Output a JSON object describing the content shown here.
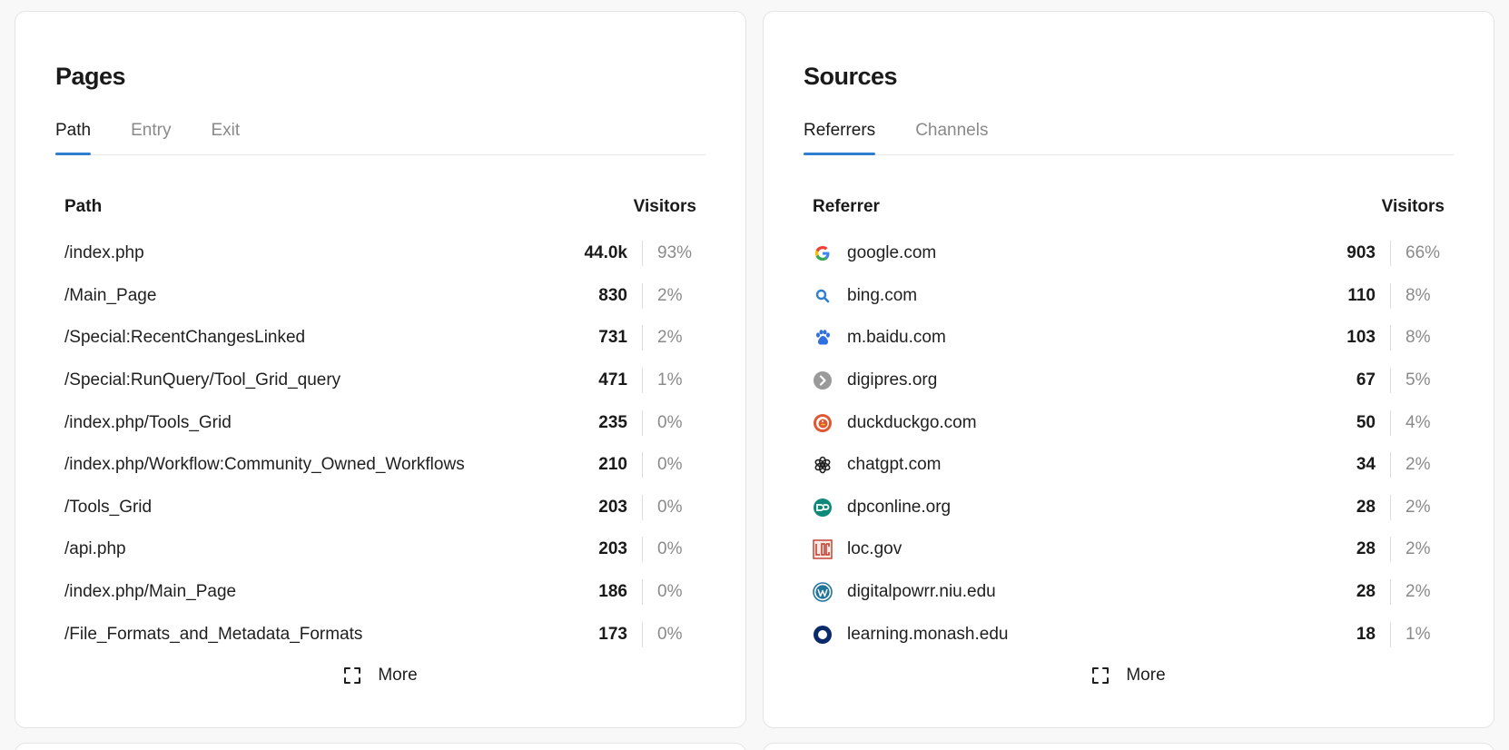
{
  "pages": {
    "title": "Pages",
    "tabs": [
      {
        "label": "Path",
        "active": true
      },
      {
        "label": "Entry",
        "active": false
      },
      {
        "label": "Exit",
        "active": false
      }
    ],
    "columns": {
      "label": "Path",
      "visitors": "Visitors"
    },
    "rows": [
      {
        "label": "/index.php",
        "count": "44.0k",
        "pct": "93%"
      },
      {
        "label": "/Main_Page",
        "count": "830",
        "pct": "2%"
      },
      {
        "label": "/Special:RecentChangesLinked",
        "count": "731",
        "pct": "2%"
      },
      {
        "label": "/Special:RunQuery/Tool_Grid_query",
        "count": "471",
        "pct": "1%"
      },
      {
        "label": "/index.php/Tools_Grid",
        "count": "235",
        "pct": "0%"
      },
      {
        "label": "/index.php/Workflow:Community_Owned_Workflows",
        "count": "210",
        "pct": "0%"
      },
      {
        "label": "/Tools_Grid",
        "count": "203",
        "pct": "0%"
      },
      {
        "label": "/api.php",
        "count": "203",
        "pct": "0%"
      },
      {
        "label": "/index.php/Main_Page",
        "count": "186",
        "pct": "0%"
      },
      {
        "label": "/File_Formats_and_Metadata_Formats",
        "count": "173",
        "pct": "0%"
      }
    ],
    "more_label": "More"
  },
  "sources": {
    "title": "Sources",
    "tabs": [
      {
        "label": "Referrers",
        "active": true
      },
      {
        "label": "Channels",
        "active": false
      }
    ],
    "columns": {
      "label": "Referrer",
      "visitors": "Visitors"
    },
    "rows": [
      {
        "label": "google.com",
        "count": "903",
        "pct": "66%",
        "icon": "google-icon"
      },
      {
        "label": "bing.com",
        "count": "110",
        "pct": "8%",
        "icon": "bing-icon"
      },
      {
        "label": "m.baidu.com",
        "count": "103",
        "pct": "8%",
        "icon": "baidu-icon"
      },
      {
        "label": "digipres.org",
        "count": "67",
        "pct": "5%",
        "icon": "digipres-icon"
      },
      {
        "label": "duckduckgo.com",
        "count": "50",
        "pct": "4%",
        "icon": "duckduckgo-icon"
      },
      {
        "label": "chatgpt.com",
        "count": "34",
        "pct": "2%",
        "icon": "chatgpt-icon"
      },
      {
        "label": "dpconline.org",
        "count": "28",
        "pct": "2%",
        "icon": "dpconline-icon"
      },
      {
        "label": "loc.gov",
        "count": "28",
        "pct": "2%",
        "icon": "loc-icon"
      },
      {
        "label": "digitalpowrr.niu.edu",
        "count": "28",
        "pct": "2%",
        "icon": "wordpress-icon"
      },
      {
        "label": "learning.monash.edu",
        "count": "18",
        "pct": "1%",
        "icon": "monash-icon"
      }
    ],
    "more_label": "More"
  },
  "colors": {
    "accent": "#2f7fd1",
    "muted_text": "#8a8a8a",
    "border": "#e4e4e4"
  }
}
